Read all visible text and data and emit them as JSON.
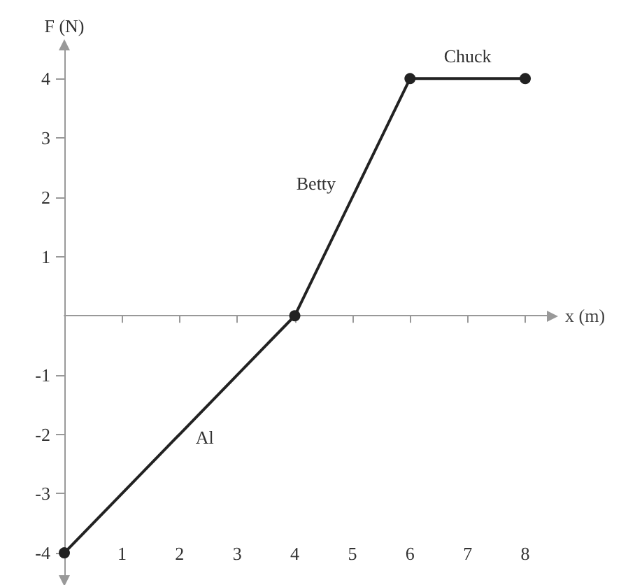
{
  "chart_data": {
    "type": "line",
    "xlabel": "x (m)",
    "ylabel": "F (N)",
    "x": [
      0,
      4,
      6,
      8
    ],
    "series": [
      {
        "color": "#222222",
        "values": [
          -4,
          0,
          4,
          4
        ]
      }
    ],
    "xlim": [
      0,
      8.4
    ],
    "ylim": [
      -4.4,
      4.5
    ],
    "xticks": [
      1,
      2,
      3,
      4,
      5,
      6,
      7,
      8
    ],
    "yticks": [
      -4,
      -3,
      -2,
      -1,
      1,
      2,
      3,
      4
    ],
    "marker": "circle",
    "line_style": "solid",
    "grid": false,
    "annotations": [
      "Al",
      "Betty",
      "Chuck"
    ]
  }
}
